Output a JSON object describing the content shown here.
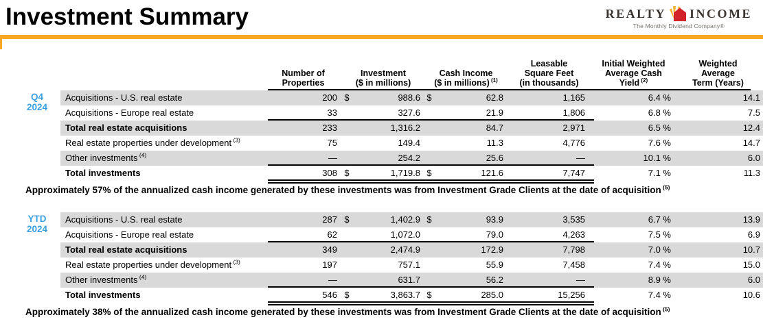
{
  "page": {
    "title": "Investment Summary",
    "accent_color": "#F7A823"
  },
  "logo": {
    "realty": "REALTY",
    "income": "INCOME",
    "tagline": "The Monthly Dividend Company®"
  },
  "table": {
    "shade_color": "#D9D9D9",
    "period_color": "#3B9FE0",
    "headers": [
      {
        "key": "props",
        "lines": [
          "Number of",
          "Properties"
        ],
        "sup": ""
      },
      {
        "key": "inv",
        "lines": [
          "Investment",
          "($ in millions)"
        ],
        "sup": ""
      },
      {
        "key": "cash",
        "lines": [
          "Cash Income",
          "($ in millions)"
        ],
        "sup": "(1)"
      },
      {
        "key": "sqft",
        "lines": [
          "Leasable",
          "Square Feet",
          "(in thousands)"
        ],
        "sup": ""
      },
      {
        "key": "yield",
        "lines": [
          "Initial Weighted",
          "Average Cash",
          "Yield"
        ],
        "sup": "(2)"
      },
      {
        "key": "term",
        "lines": [
          "Weighted",
          "Average",
          "Term (Years)"
        ],
        "sup": ""
      }
    ],
    "sections": [
      {
        "period": [
          "Q4",
          "2024"
        ],
        "rows": [
          {
            "label": "Acquisitions - U.S. real estate",
            "sup": "",
            "bold": false,
            "shaded": true,
            "rule": "",
            "cells": {
              "props": "200",
              "d1": "$",
              "investment": "988.6",
              "d2": "$",
              "cash": "62.8",
              "sqft": "1,165",
              "yield": "6.4 %",
              "term": "14.1"
            }
          },
          {
            "label": "Acquisitions - Europe real estate",
            "sup": "",
            "bold": false,
            "shaded": false,
            "rule": "single",
            "cells": {
              "props": "33",
              "d1": "",
              "investment": "327.6",
              "d2": "",
              "cash": "21.9",
              "sqft": "1,806",
              "yield": "6.8 %",
              "term": "7.5"
            }
          },
          {
            "label": "Total real estate acquisitions",
            "sup": "",
            "bold": true,
            "shaded": true,
            "rule": "",
            "cells": {
              "props": "233",
              "d1": "",
              "investment": "1,316.2",
              "d2": "",
              "cash": "84.7",
              "sqft": "2,971",
              "yield": "6.5 %",
              "term": "12.4"
            }
          },
          {
            "label": "Real estate properties under development",
            "sup": "(3)",
            "bold": false,
            "shaded": false,
            "rule": "",
            "cells": {
              "props": "75",
              "d1": "",
              "investment": "149.4",
              "d2": "",
              "cash": "11.3",
              "sqft": "4,776",
              "yield": "7.6 %",
              "term": "14.7"
            }
          },
          {
            "label": "Other investments",
            "sup": "(4)",
            "bold": false,
            "shaded": true,
            "rule": "single",
            "cells": {
              "props": "—",
              "d1": "",
              "investment": "254.2",
              "d2": "",
              "cash": "25.6",
              "sqft": "—",
              "yield": "10.1 %",
              "term": "6.0"
            }
          },
          {
            "label": "Total investments",
            "sup": "",
            "bold": true,
            "shaded": false,
            "rule": "double",
            "cells": {
              "props": "308",
              "d1": "$",
              "investment": "1,719.8",
              "d2": "$",
              "cash": "121.6",
              "sqft": "7,747",
              "yield": "7.1 %",
              "term": "11.3"
            }
          }
        ],
        "footnote": {
          "text": "Approximately 57% of the annualized cash income generated by these investments was from Investment Grade Clients at the date of acquisition",
          "sup": "(5)"
        }
      },
      {
        "period": [
          "YTD",
          "2024"
        ],
        "rows": [
          {
            "label": "Acquisitions - U.S. real estate",
            "sup": "",
            "bold": false,
            "shaded": true,
            "rule": "",
            "cells": {
              "props": "287",
              "d1": "$",
              "investment": "1,402.9",
              "d2": "$",
              "cash": "93.9",
              "sqft": "3,535",
              "yield": "6.7 %",
              "term": "13.9"
            }
          },
          {
            "label": "Acquisitions - Europe real estate",
            "sup": "",
            "bold": false,
            "shaded": false,
            "rule": "single",
            "cells": {
              "props": "62",
              "d1": "",
              "investment": "1,072.0",
              "d2": "",
              "cash": "79.0",
              "sqft": "4,263",
              "yield": "7.5 %",
              "term": "6.9"
            }
          },
          {
            "label": "Total real estate acquisitions",
            "sup": "",
            "bold": true,
            "shaded": true,
            "rule": "",
            "cells": {
              "props": "349",
              "d1": "",
              "investment": "2,474.9",
              "d2": "",
              "cash": "172.9",
              "sqft": "7,798",
              "yield": "7.0 %",
              "term": "10.7"
            }
          },
          {
            "label": "Real estate properties under development",
            "sup": "(3)",
            "bold": false,
            "shaded": false,
            "rule": "",
            "cells": {
              "props": "197",
              "d1": "",
              "investment": "757.1",
              "d2": "",
              "cash": "55.9",
              "sqft": "7,458",
              "yield": "7.4 %",
              "term": "15.0"
            }
          },
          {
            "label": "Other investments",
            "sup": "(4)",
            "bold": false,
            "shaded": true,
            "rule": "single",
            "cells": {
              "props": "—",
              "d1": "",
              "investment": "631.7",
              "d2": "",
              "cash": "56.2",
              "sqft": "—",
              "yield": "8.9 %",
              "term": "6.0"
            }
          },
          {
            "label": "Total investments",
            "sup": "",
            "bold": true,
            "shaded": false,
            "rule": "double",
            "cells": {
              "props": "546",
              "d1": "$",
              "investment": "3,863.7",
              "d2": "$",
              "cash": "285.0",
              "sqft": "15,256",
              "yield": "7.4 %",
              "term": "10.6"
            }
          }
        ],
        "footnote": {
          "text": "Approximately 38% of the annualized cash income generated by these investments was from Investment Grade Clients at the date of acquisition",
          "sup": "(5)"
        }
      }
    ]
  }
}
